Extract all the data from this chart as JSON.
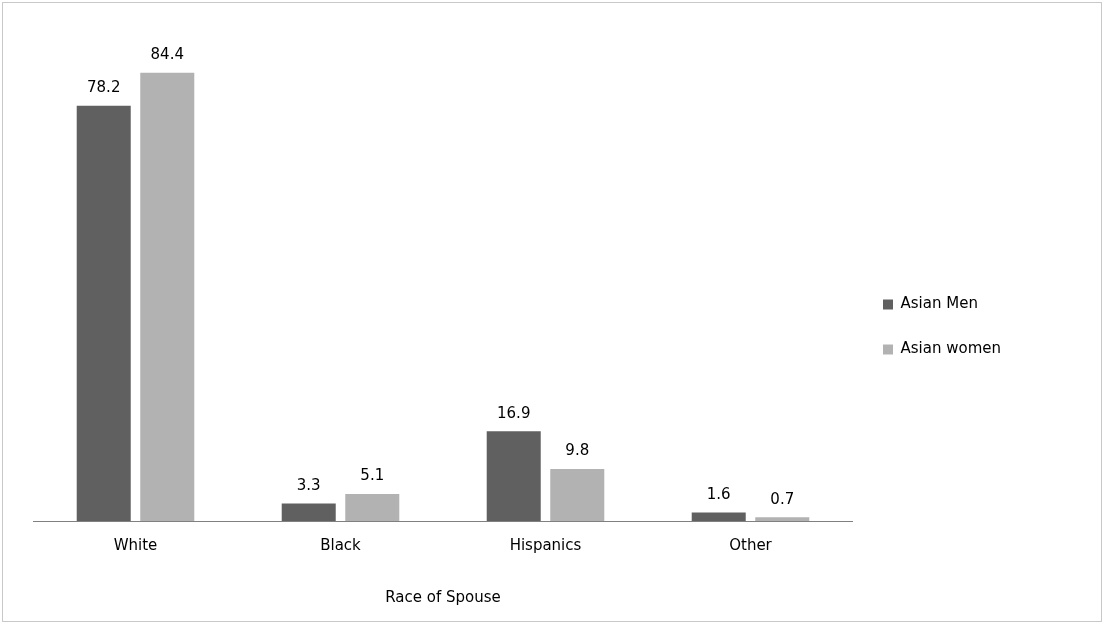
{
  "chart_data": {
    "type": "bar",
    "xlabel": "Race of Spouse",
    "categories": [
      "White",
      "Black",
      "Hispanics",
      "Other"
    ],
    "series": [
      {
        "name": "Asian Men",
        "color": "#606060",
        "values": [
          78.2,
          3.3,
          16.9,
          1.6
        ]
      },
      {
        "name": "Asian women",
        "color": "#b2b2b2",
        "values": [
          84.4,
          5.1,
          9.8,
          0.7
        ]
      }
    ],
    "data_labels": true,
    "legend": "right",
    "grid": false
  }
}
